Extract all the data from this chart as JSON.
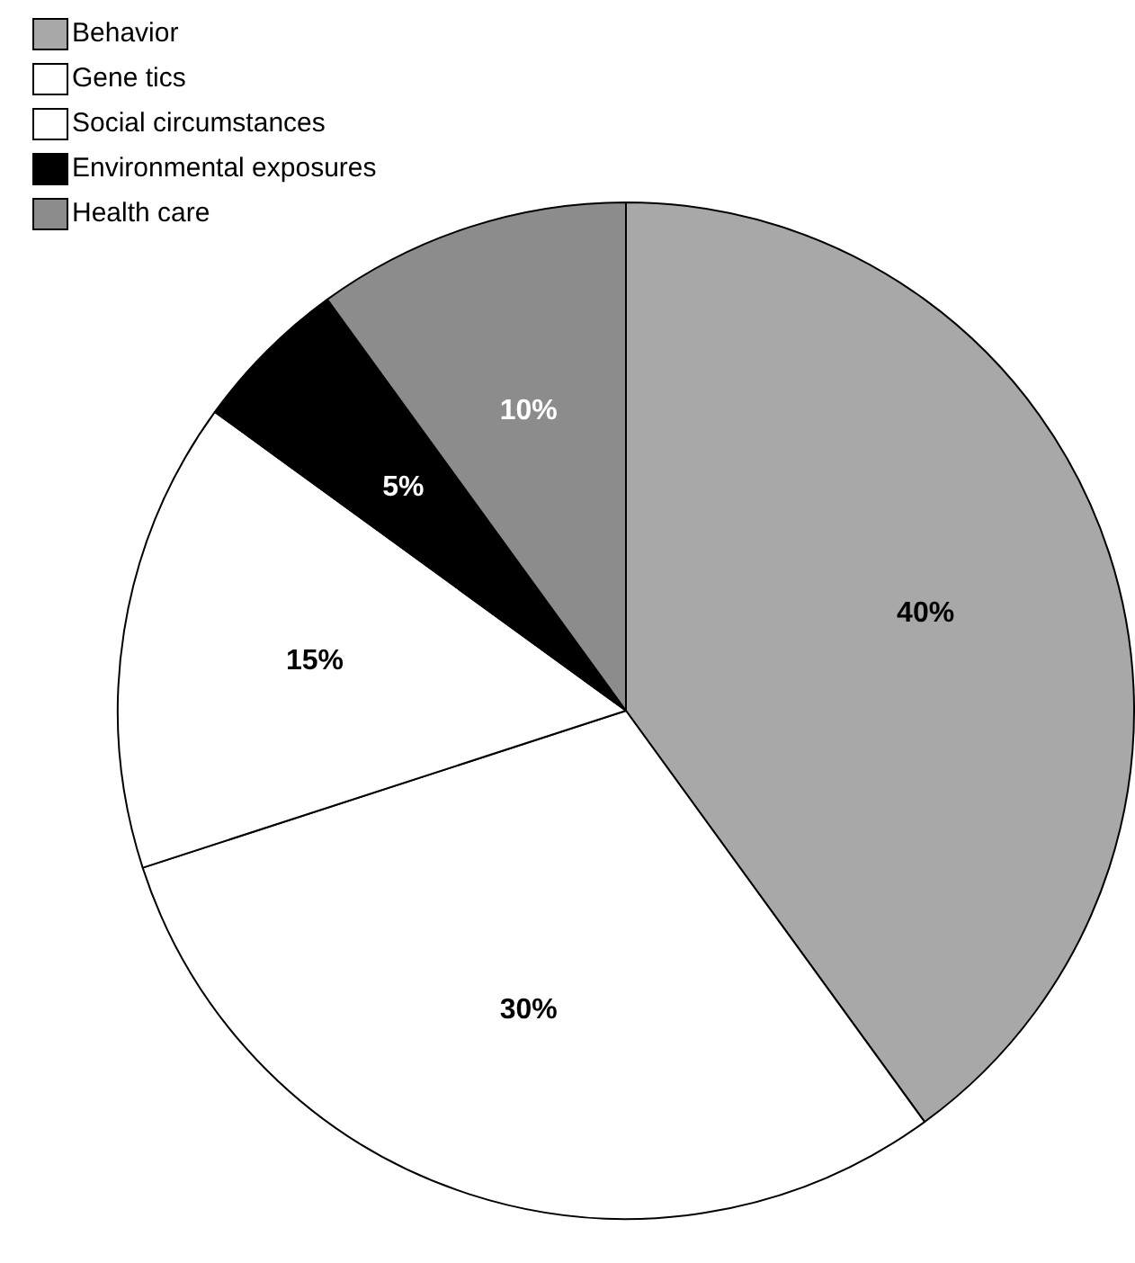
{
  "chart_data": {
    "type": "pie",
    "categories": [
      "Behavior",
      "Gene tics",
      "Social circumstances",
      "Environmental exposures",
      "Health care"
    ],
    "values": [
      40,
      30,
      15,
      5,
      10
    ],
    "value_labels": [
      "40%",
      "30%",
      "15%",
      "5%",
      "10%"
    ],
    "colors": [
      "#a8a8a8",
      "#ffffff",
      "#ffffff",
      "#000000",
      "#8c8c8c"
    ],
    "legend": "top left"
  }
}
